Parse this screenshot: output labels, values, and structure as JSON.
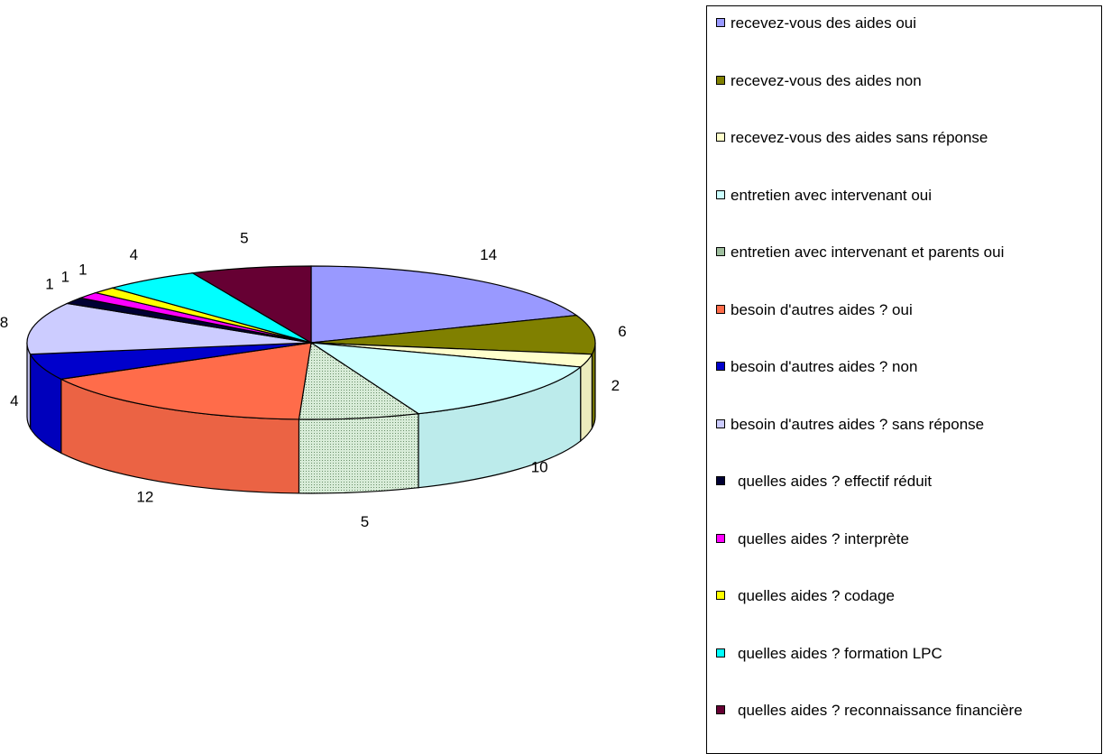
{
  "chart_data": {
    "type": "pie",
    "title": "",
    "three_d": true,
    "legend_position": "right",
    "slices": [
      {
        "label": "recevez-vous des aides oui",
        "value": 14,
        "color": "#9999ff"
      },
      {
        "label": "recevez-vous des aides non",
        "value": 6,
        "color": "#808000"
      },
      {
        "label": "recevez-vous des aides sans réponse",
        "value": 2,
        "color": "#ffffcc"
      },
      {
        "label": "entretien avec intervenant oui",
        "value": 10,
        "color": "#ccffff"
      },
      {
        "label": "entretien avec intervenant et parents oui",
        "value": 5,
        "color": "#c0d8c0"
      },
      {
        "label": "besoin d'autres aides ? oui",
        "value": 12,
        "color": "#ff6c4a"
      },
      {
        "label": "besoin d'autres aides ? non",
        "value": 4,
        "color": "#0000cc"
      },
      {
        "label": "besoin d'autres aides ? sans réponse",
        "value": 8,
        "color": "#ccccff"
      },
      {
        "label": " quelles aides ? effectif réduit",
        "value": 1,
        "color": "#000033"
      },
      {
        "label": " quelles aides ? interprète",
        "value": 1,
        "color": "#ff00ff"
      },
      {
        "label": " quelles aides ? codage",
        "value": 1,
        "color": "#ffff00"
      },
      {
        "label": " quelles aides ? formation LPC",
        "value": 4,
        "color": "#00ffff"
      },
      {
        "label": " quelles aides ? reconnaissance financière",
        "value": 5,
        "color": "#660033"
      }
    ]
  }
}
